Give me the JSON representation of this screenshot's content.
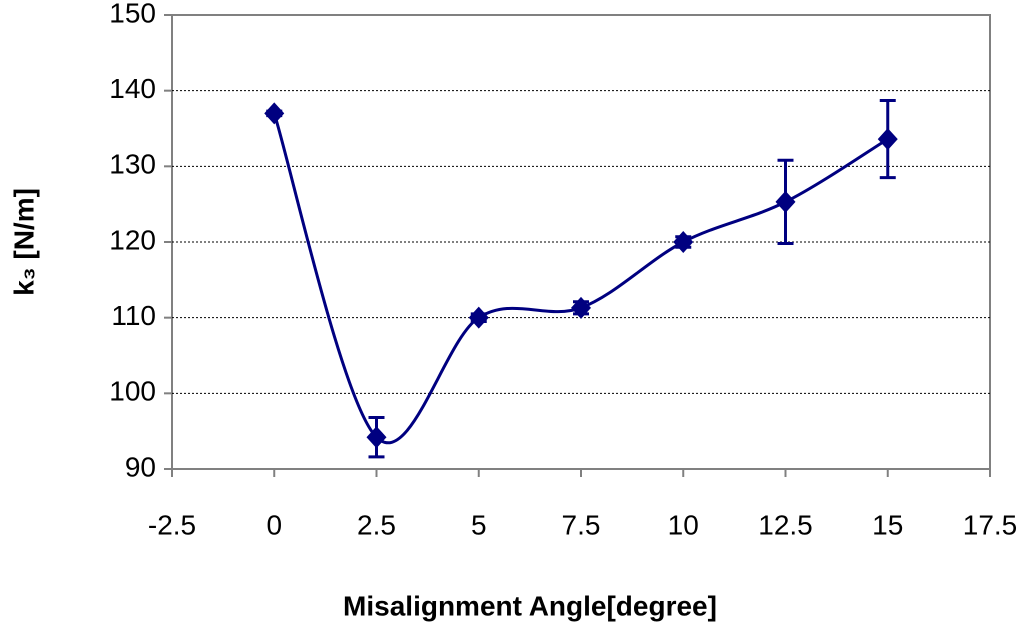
{
  "chart_data": {
    "type": "scatter-line",
    "x_label": "Misalignment Angle[degree]",
    "y_label": "k₃ [N/m]",
    "x": [
      0,
      2.5,
      5,
      7.5,
      10,
      12.5,
      15
    ],
    "series": [
      {
        "name": "k3",
        "color": "#000080",
        "values": [
          137,
          94.2,
          110,
          111.3,
          120,
          125.3,
          133.6
        ],
        "errors": [
          0.3,
          2.6,
          0.5,
          0.8,
          0.7,
          5.5,
          5.1
        ]
      }
    ],
    "xlim": [
      -2.5,
      17.5
    ],
    "xticks": [
      -2.5,
      0,
      2.5,
      5,
      7.5,
      10,
      12.5,
      15,
      17.5
    ],
    "ylim": [
      90,
      150
    ],
    "yticks": [
      90,
      100,
      110,
      120,
      130,
      140,
      150
    ],
    "grid": true,
    "smooth": true
  }
}
